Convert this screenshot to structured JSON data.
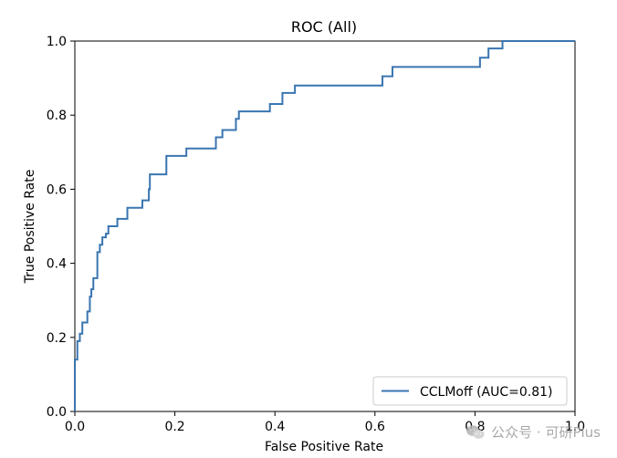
{
  "chart_data": {
    "type": "line",
    "title": "ROC (All)",
    "xlabel": "False Positive Rate",
    "ylabel": "True Positive Rate",
    "xlim": [
      0.0,
      1.0
    ],
    "ylim": [
      0.0,
      1.0
    ],
    "xticks": [
      "0.0",
      "0.2",
      "0.4",
      "0.6",
      "0.8",
      "1.0"
    ],
    "yticks": [
      "0.0",
      "0.2",
      "0.4",
      "0.6",
      "0.8",
      "1.0"
    ],
    "grid": false,
    "legend_position": "lower-right",
    "series": [
      {
        "name": "CCLMoff (AUC=0.81)",
        "color": "#3a75b0",
        "x": [
          0.0,
          0.0,
          0.005,
          0.005,
          0.01,
          0.01,
          0.015,
          0.015,
          0.025,
          0.025,
          0.03,
          0.03,
          0.033,
          0.033,
          0.037,
          0.037,
          0.045,
          0.045,
          0.05,
          0.05,
          0.055,
          0.055,
          0.062,
          0.062,
          0.067,
          0.067,
          0.085,
          0.085,
          0.105,
          0.105,
          0.135,
          0.135,
          0.148,
          0.148,
          0.15,
          0.15,
          0.183,
          0.183,
          0.223,
          0.223,
          0.282,
          0.282,
          0.295,
          0.295,
          0.322,
          0.322,
          0.328,
          0.328,
          0.39,
          0.39,
          0.415,
          0.415,
          0.44,
          0.44,
          0.615,
          0.615,
          0.635,
          0.635,
          0.81,
          0.81,
          0.827,
          0.827,
          0.855,
          0.855,
          1.0
        ],
        "y": [
          0.0,
          0.14,
          0.14,
          0.19,
          0.19,
          0.21,
          0.21,
          0.24,
          0.24,
          0.27,
          0.27,
          0.31,
          0.31,
          0.33,
          0.33,
          0.36,
          0.36,
          0.43,
          0.43,
          0.45,
          0.45,
          0.47,
          0.47,
          0.48,
          0.48,
          0.5,
          0.5,
          0.52,
          0.52,
          0.55,
          0.55,
          0.57,
          0.57,
          0.6,
          0.6,
          0.64,
          0.64,
          0.69,
          0.69,
          0.71,
          0.71,
          0.74,
          0.74,
          0.76,
          0.76,
          0.79,
          0.79,
          0.81,
          0.81,
          0.83,
          0.83,
          0.86,
          0.86,
          0.88,
          0.88,
          0.905,
          0.905,
          0.93,
          0.93,
          0.955,
          0.955,
          0.98,
          0.98,
          1.0,
          1.0
        ]
      }
    ]
  },
  "watermark": {
    "icon": "wechat-icon",
    "text": "公众号 · 可研Plus"
  }
}
